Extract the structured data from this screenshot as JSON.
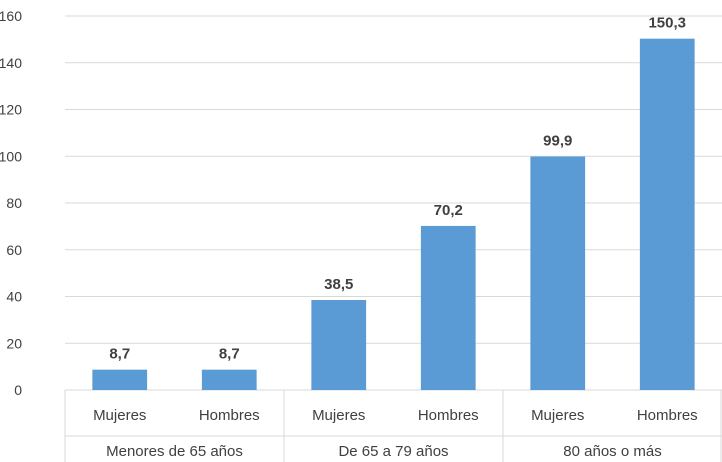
{
  "chart_data": {
    "type": "bar",
    "groups": [
      {
        "label": "Menores de 65 años",
        "categories": [
          "Mujeres",
          "Hombres"
        ],
        "values": [
          8.7,
          8.7
        ],
        "value_labels": [
          "8,7",
          "8,7"
        ]
      },
      {
        "label": "De 65 a 79 años",
        "categories": [
          "Mujeres",
          "Hombres"
        ],
        "values": [
          38.5,
          70.2
        ],
        "value_labels": [
          "38,5",
          "70,2"
        ]
      },
      {
        "label": "80 años o más",
        "categories": [
          "Mujeres",
          "Hombres"
        ],
        "values": [
          99.9,
          150.3
        ],
        "value_labels": [
          "99,9",
          "150,3"
        ]
      }
    ],
    "y_ticks": [
      "0",
      "20",
      "40",
      "60",
      "80",
      "100",
      "120",
      "140",
      "160"
    ],
    "ylim": [
      0,
      160
    ],
    "bar_color": "#5B9BD5",
    "grid": true,
    "title": "",
    "xlabel": "",
    "ylabel": ""
  }
}
